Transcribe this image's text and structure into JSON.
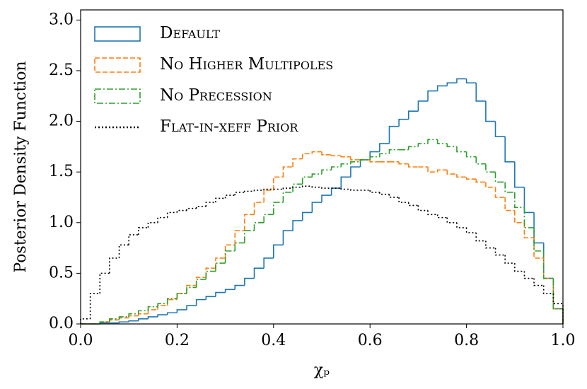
{
  "chart_data": {
    "type": "histogram",
    "xlabel": "χₚ",
    "ylabel": "Posterior Density Function",
    "bins": [
      0,
      0.02,
      0.04,
      0.06,
      0.08,
      0.1,
      0.12,
      0.14,
      0.16,
      0.18,
      0.2,
      0.22,
      0.24,
      0.26,
      0.28,
      0.3,
      0.32,
      0.34,
      0.36,
      0.38,
      0.4,
      0.42,
      0.44,
      0.46,
      0.48,
      0.5,
      0.52,
      0.54,
      0.56,
      0.58,
      0.6,
      0.62,
      0.64,
      0.66,
      0.68,
      0.7,
      0.72,
      0.74,
      0.76,
      0.78,
      0.8,
      0.82,
      0.84,
      0.86,
      0.88,
      0.9,
      0.92,
      0.94,
      0.96,
      0.98,
      1
    ],
    "series": [
      {
        "name": "Default",
        "color": "#1f77b4",
        "linestyle": "solid",
        "values": [
          0,
          0,
          0.01,
          0.01,
          0.02,
          0.03,
          0.05,
          0.07,
          0.09,
          0.11,
          0.14,
          0.18,
          0.24,
          0.27,
          0.31,
          0.34,
          0.38,
          0.45,
          0.55,
          0.65,
          0.78,
          0.92,
          1.02,
          1.1,
          1.2,
          1.27,
          1.34,
          1.45,
          1.55,
          1.62,
          1.7,
          1.78,
          1.95,
          2.02,
          2.1,
          2.2,
          2.3,
          2.35,
          2.38,
          2.42,
          2.38,
          2.2,
          2.0,
          1.85,
          1.6,
          1.35,
          1.1,
          0.8,
          0.45,
          0.15
        ]
      },
      {
        "name": "No Higher Multipoles",
        "color": "#ff7f0e",
        "linestyle": "dashed",
        "values": [
          0,
          0,
          0.02,
          0.04,
          0.06,
          0.08,
          0.1,
          0.14,
          0.18,
          0.24,
          0.3,
          0.38,
          0.46,
          0.55,
          0.65,
          0.78,
          0.92,
          1.08,
          1.2,
          1.32,
          1.45,
          1.55,
          1.63,
          1.68,
          1.7,
          1.67,
          1.66,
          1.65,
          1.62,
          1.62,
          1.6,
          1.6,
          1.6,
          1.58,
          1.55,
          1.55,
          1.5,
          1.52,
          1.48,
          1.45,
          1.43,
          1.4,
          1.35,
          1.25,
          1.12,
          1.0,
          0.85,
          0.65,
          0.45,
          0.15
        ]
      },
      {
        "name": "No Precession",
        "color": "#2ca02c",
        "linestyle": "dashdot",
        "values": [
          0,
          0,
          0.02,
          0.05,
          0.07,
          0.1,
          0.13,
          0.17,
          0.2,
          0.25,
          0.3,
          0.36,
          0.44,
          0.52,
          0.6,
          0.72,
          0.8,
          0.92,
          1.0,
          1.08,
          1.2,
          1.3,
          1.38,
          1.45,
          1.48,
          1.52,
          1.55,
          1.58,
          1.6,
          1.62,
          1.65,
          1.68,
          1.72,
          1.72,
          1.75,
          1.78,
          1.82,
          1.78,
          1.75,
          1.7,
          1.65,
          1.58,
          1.5,
          1.4,
          1.3,
          1.15,
          0.95,
          0.72,
          0.45,
          0.15
        ]
      },
      {
        "name": "Flat-in-χeff Prior",
        "color": "#000000",
        "linestyle": "dotted",
        "values": [
          0.05,
          0.3,
          0.5,
          0.65,
          0.78,
          0.88,
          0.95,
          1.0,
          1.05,
          1.1,
          1.12,
          1.14,
          1.16,
          1.2,
          1.24,
          1.27,
          1.3,
          1.31,
          1.32,
          1.33,
          1.33,
          1.34,
          1.35,
          1.36,
          1.35,
          1.34,
          1.34,
          1.33,
          1.32,
          1.32,
          1.3,
          1.28,
          1.25,
          1.2,
          1.17,
          1.12,
          1.08,
          1.05,
          1.0,
          0.95,
          0.9,
          0.82,
          0.75,
          0.68,
          0.6,
          0.52,
          0.45,
          0.38,
          0.3,
          0.2
        ]
      }
    ],
    "xlim": [
      0,
      1
    ],
    "ylim": [
      0,
      3.1
    ],
    "xticks": [
      {
        "value": 0,
        "label": "0.0"
      },
      0.2,
      0.4,
      0.6,
      0.8,
      {
        "value": 1,
        "label": "1.0"
      }
    ],
    "yticks": [
      {
        "value": 0,
        "label": "0.0"
      },
      0.5,
      {
        "value": 1,
        "label": "1.0"
      },
      1.5,
      {
        "value": 2,
        "label": "2.0"
      },
      2.5,
      {
        "value": 3,
        "label": "3.0"
      }
    ],
    "legend": "upper left",
    "grid": false
  }
}
